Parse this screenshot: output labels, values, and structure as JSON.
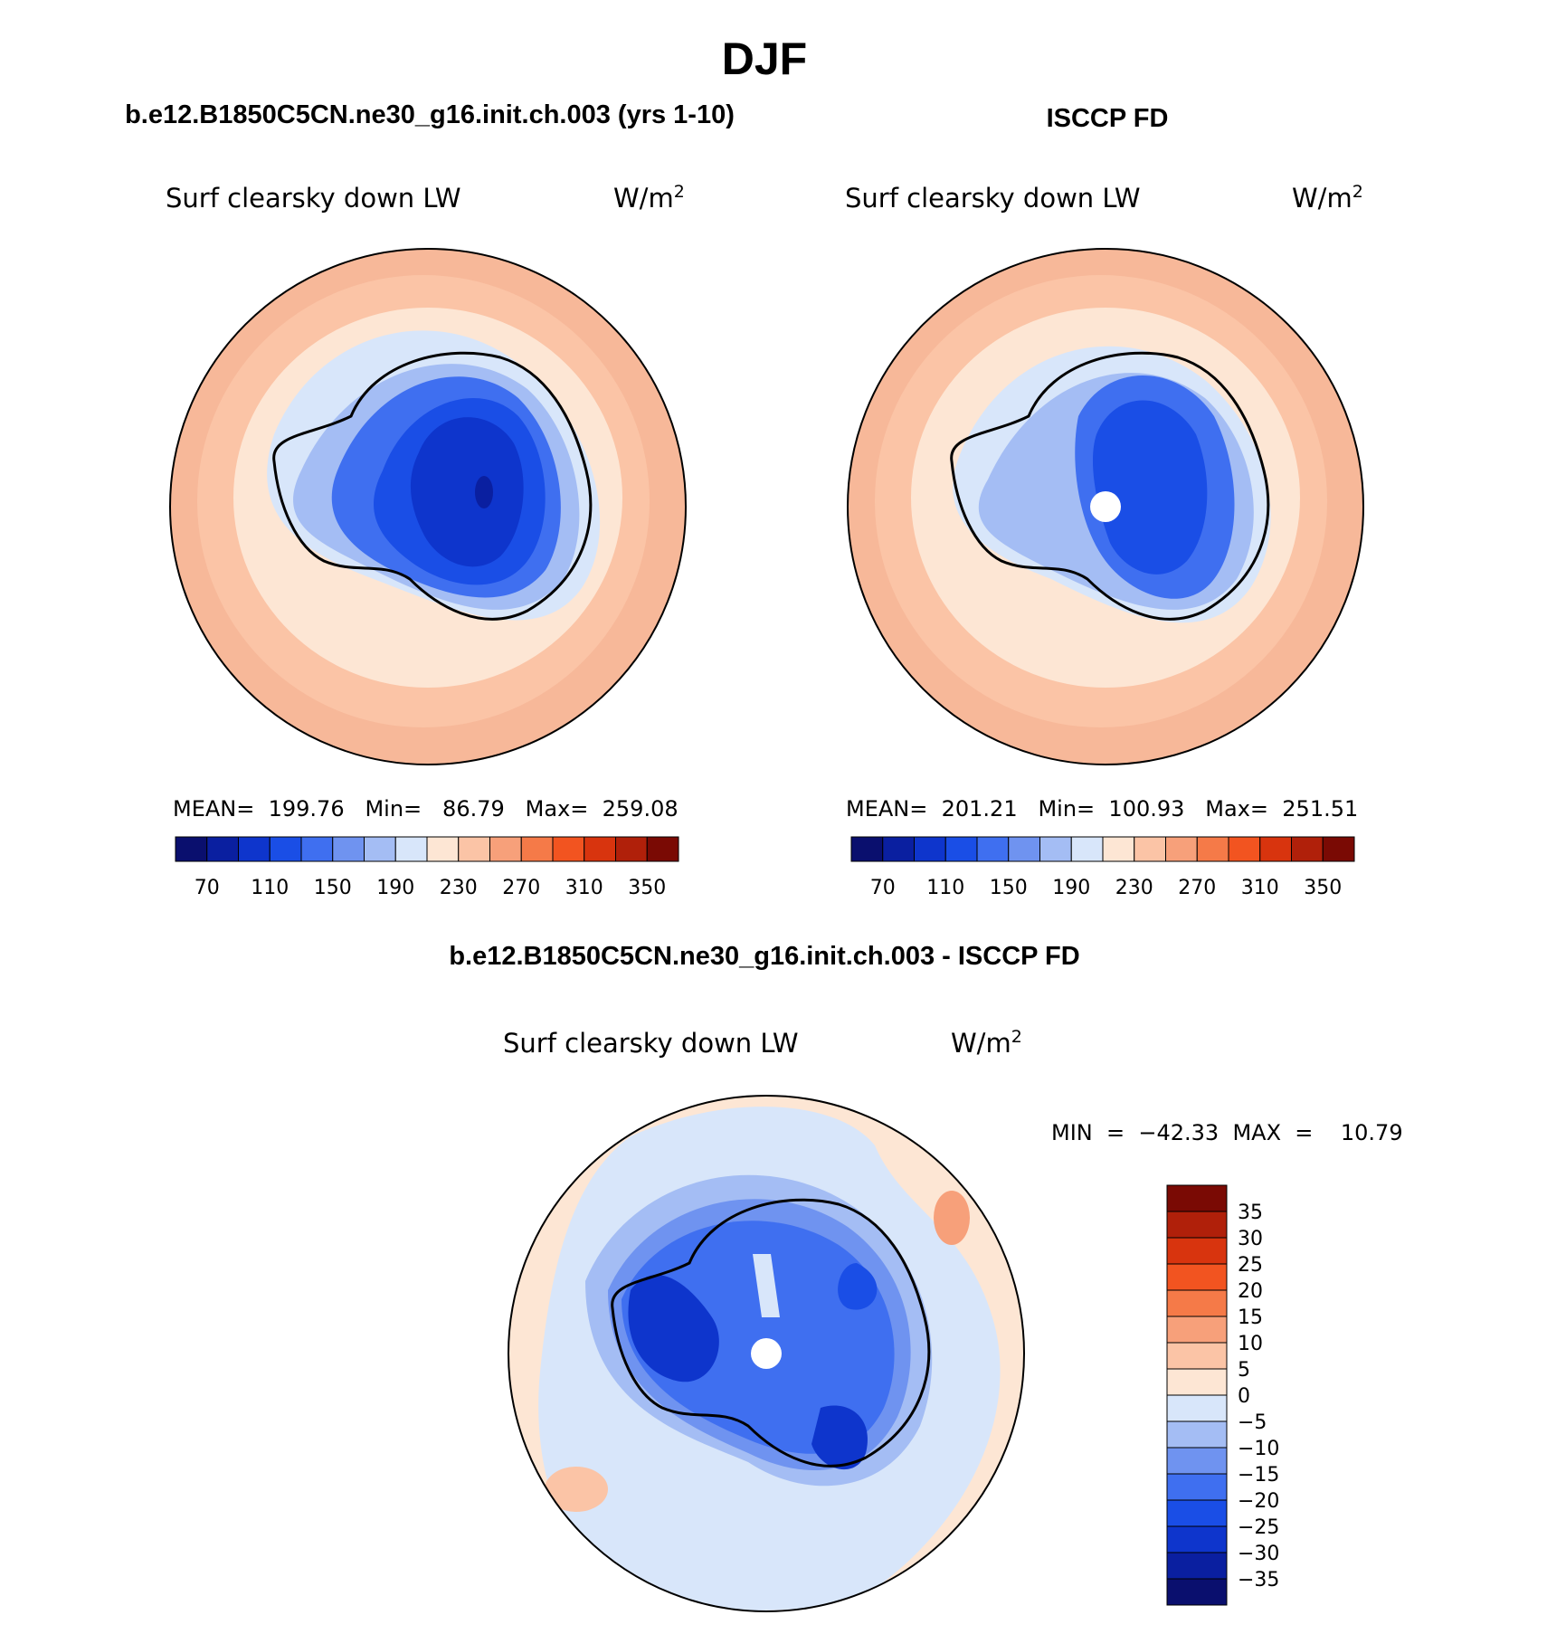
{
  "title": "DJF",
  "panels": [
    {
      "heading": "b.e12.B1850C5CN.ne30_g16.init.ch.003 (yrs 1-10)",
      "variable": "Surf clearsky down LW",
      "units_base": "W/m",
      "units_exp": "2",
      "stats": "MEAN=  199.76   Min=   86.79   Max=  259.08"
    },
    {
      "heading": "ISCCP FD",
      "variable": "Surf clearsky down LW",
      "units_base": "W/m",
      "units_exp": "2",
      "stats": "MEAN=  201.21   Min=  100.93   Max=  251.51"
    },
    {
      "heading": "b.e12.B1850C5CN.ne30_g16.init.ch.003 - ISCCP FD",
      "variable": "Surf clearsky down LW",
      "units_base": "W/m",
      "units_exp": "2",
      "stats": "MIN  =  −42.33  MAX  =    10.79"
    }
  ],
  "colorbar_abs": {
    "colors": [
      "#0a0f6e",
      "#0a1fa0",
      "#0e35cc",
      "#1a4ee6",
      "#3f6ff0",
      "#6f93f0",
      "#a4bdf4",
      "#d8e6fa",
      "#fde6d4",
      "#fbc4a6",
      "#f7a07a",
      "#f57a48",
      "#f25420",
      "#d8340e",
      "#b0200a",
      "#7a0a04"
    ],
    "tick_labels": [
      "70",
      "110",
      "150",
      "190",
      "230",
      "270",
      "310",
      "350"
    ]
  },
  "colorbar_diff": {
    "colors": [
      "#0a0f6e",
      "#0a1fa0",
      "#0e35cc",
      "#1a4ee6",
      "#3f6ff0",
      "#6f93f0",
      "#a4bdf4",
      "#d8e6fa",
      "#fde6d4",
      "#fbc4a6",
      "#f7a07a",
      "#f57a48",
      "#f25420",
      "#d8340e",
      "#b0200a",
      "#7a0a04"
    ],
    "tick_labels": [
      "−35",
      "−30",
      "−25",
      "−20",
      "−15",
      "−10",
      "−5",
      "0",
      "5",
      "10",
      "15",
      "20",
      "25",
      "30",
      "35"
    ]
  }
}
